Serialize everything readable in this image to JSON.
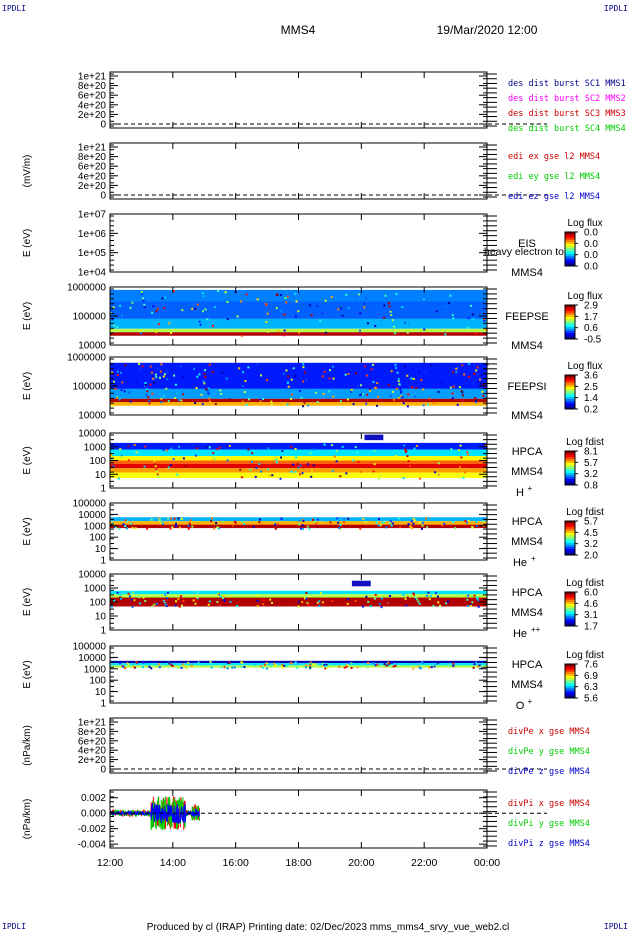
{
  "header": {
    "spacecraft": "MMS4",
    "datetime": "19/Mar/2020 12:00",
    "corner_label": "IPDLI"
  },
  "footer": {
    "text": "Produced by cl (IRAP)   Printing date: 02/Dec/2023   mms_mms4_srvy_vue_web2.cl"
  },
  "colors": {
    "black": "#000000",
    "red": "#ff0000",
    "green": "#00cc00",
    "blue": "#0000ff",
    "magenta": "#ff00ff",
    "navy": "#00008b"
  },
  "chart_data": {
    "type": "multi-panel",
    "x_axis": {
      "ticks": [
        "12:00",
        "14:00",
        "16:00",
        "18:00",
        "20:00",
        "22:00",
        "00:00"
      ],
      "range_hours": [
        12,
        24
      ]
    },
    "panels": [
      {
        "id": "p1",
        "kind": "line",
        "ylabel": "",
        "yticks": [
          "1e+21",
          "8e+20",
          "6e+20",
          "4e+20",
          "2e+20",
          "0"
        ],
        "legend": [
          {
            "text": "des dist burst SC1 MMS1",
            "color": "#00008b"
          },
          {
            "text": "des dist burst SC2 MMS2",
            "color": "#ff00ff"
          },
          {
            "text": "des dist burst SC3 MMS3",
            "color": "#cc0000"
          },
          {
            "text": "des dist burst SC4 MMS4",
            "color": "#00cc00"
          }
        ],
        "zero_line": true
      },
      {
        "id": "p2",
        "kind": "line",
        "ylabel": "(mV/m)",
        "yticks": [
          "1e+21",
          "8e+20",
          "6e+20",
          "4e+20",
          "2e+20",
          "0"
        ],
        "legend": [
          {
            "text": "edi ex gse l2 MMS4",
            "color": "#cc0000"
          },
          {
            "text": "edi ey gse l2 MMS4",
            "color": "#00cc00"
          },
          {
            "text": "edi ez gse l2 MMS4",
            "color": "#0000cc"
          }
        ],
        "zero_line": true
      },
      {
        "id": "p3",
        "kind": "spectrogram",
        "ylabel": "E (eV)",
        "yticks": [
          "1e+07",
          "1e+06",
          "1e+05",
          "1e+04"
        ],
        "side_labels": [
          "EIS",
          "MMS4"
        ],
        "overlay": "heavy electron to",
        "colorbar_title": "Log flux",
        "colorbar_ticks": [
          "0.0",
          "0.0",
          "0.0",
          "0.0"
        ],
        "data_extent_hours": null
      },
      {
        "id": "p4",
        "kind": "spectrogram",
        "ylabel": "E (eV)",
        "yticks": [
          "1000000",
          "100000",
          "10000"
        ],
        "side_labels": [
          "FEEPSE",
          "MMS4"
        ],
        "colorbar_title": "Log flux",
        "colorbar_ticks": [
          "2.9",
          "1.7",
          "0.6",
          "-0.5"
        ],
        "data_extent_hours": [
          12,
          24
        ]
      },
      {
        "id": "p5",
        "kind": "spectrogram",
        "ylabel": "E (eV)",
        "yticks": [
          "1000000",
          "100000",
          "10000"
        ],
        "side_labels": [
          "FEEPSI",
          "MMS4"
        ],
        "colorbar_title": "Log flux",
        "colorbar_ticks": [
          "3.6",
          "2.5",
          "1.4",
          "0.2"
        ],
        "data_extent_hours": [
          12,
          24
        ]
      },
      {
        "id": "p6",
        "kind": "spectrogram",
        "ylabel": "E (eV)",
        "yticks": [
          "10000",
          "1000",
          "100",
          "10",
          "1"
        ],
        "side_labels": [
          "HPCA",
          "MMS4"
        ],
        "species": "H",
        "charge": "+",
        "colorbar_title": "Log fdist",
        "colorbar_ticks": [
          "8.1",
          "5.7",
          "3.2",
          "0.8"
        ],
        "data_extent_hours": [
          12,
          24
        ]
      },
      {
        "id": "p7",
        "kind": "spectrogram",
        "ylabel": "E (eV)",
        "yticks": [
          "100000",
          "10000",
          "1000",
          "100",
          "10",
          "1"
        ],
        "side_labels": [
          "HPCA",
          "MMS4"
        ],
        "species": "He",
        "charge": "+",
        "colorbar_title": "Log fdist",
        "colorbar_ticks": [
          "5.7",
          "4.5",
          "3.2",
          "2.0"
        ],
        "data_extent_hours": [
          12,
          24
        ]
      },
      {
        "id": "p8",
        "kind": "spectrogram",
        "ylabel": "E (eV)",
        "yticks": [
          "10000",
          "1000",
          "100",
          "10",
          "1"
        ],
        "side_labels": [
          "HPCA",
          "MMS4"
        ],
        "species": "He",
        "charge": "++",
        "colorbar_title": "Log fdist",
        "colorbar_ticks": [
          "6.0",
          "4.6",
          "3.1",
          "1.7"
        ],
        "data_extent_hours": [
          12,
          24
        ]
      },
      {
        "id": "p9",
        "kind": "spectrogram",
        "ylabel": "E (eV)",
        "yticks": [
          "100000",
          "10000",
          "1000",
          "100",
          "10",
          "1"
        ],
        "side_labels": [
          "HPCA",
          "MMS4"
        ],
        "species": "O",
        "charge": "+",
        "colorbar_title": "Log fdist",
        "colorbar_ticks": [
          "7.6",
          "6.9",
          "6.3",
          "5.6"
        ],
        "data_extent_hours": [
          12,
          24
        ]
      },
      {
        "id": "p10",
        "kind": "line",
        "ylabel": "(nPa/km)",
        "yticks": [
          "1e+21",
          "8e+20",
          "6e+20",
          "4e+20",
          "2e+20",
          "0"
        ],
        "legend": [
          {
            "text": "divPe x gse MMS4",
            "color": "#cc0000"
          },
          {
            "text": "divPe y gse MMS4",
            "color": "#00cc00"
          },
          {
            "text": "divPe z gse MMS4",
            "color": "#0000cc"
          }
        ],
        "zero_line": true
      },
      {
        "id": "p11",
        "kind": "line",
        "ylabel": "(nPa/km)",
        "yticks": [
          "0.002",
          "0.000",
          "-0.002",
          "-0.004"
        ],
        "ylim": [
          -0.0045,
          0.003
        ],
        "legend": [
          {
            "text": "divPi x gse MMS4",
            "color": "#cc0000"
          },
          {
            "text": "divPi y gse MMS4",
            "color": "#00cc00"
          },
          {
            "text": "divPi z gse MMS4",
            "color": "#0000cc"
          }
        ],
        "zero_line": true,
        "data_extent_hours": [
          12,
          14.85
        ]
      }
    ]
  }
}
